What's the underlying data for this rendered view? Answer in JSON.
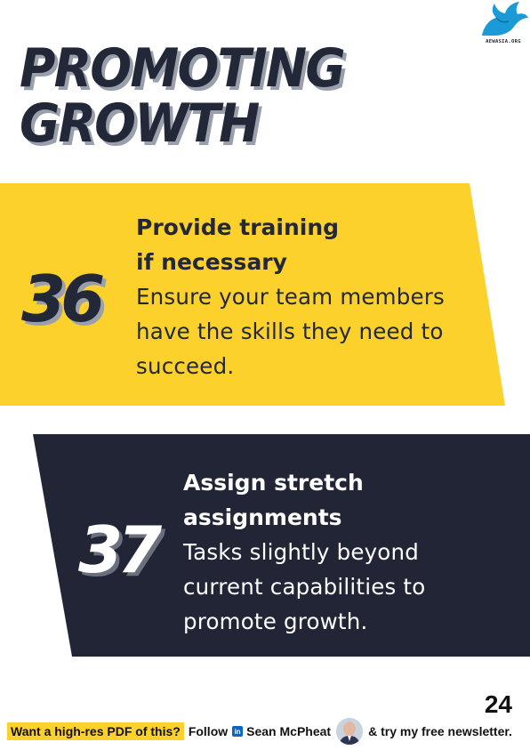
{
  "brand": {
    "logo_text": "AEWASIA.ORG"
  },
  "title": {
    "line1": "PROMOTING",
    "line2": "GROWTH"
  },
  "tips": [
    {
      "number": "36",
      "title_line1": "Provide training",
      "title_line2": "if necessary",
      "body": "Ensure your team members have the skills they need to succeed."
    },
    {
      "number": "37",
      "title_line1": "Assign stretch",
      "title_line2": "assignments",
      "body": "Tasks slightly beyond current capabilities to promote growth."
    }
  ],
  "page_number": "24",
  "footer": {
    "cta": "Want a high-res PDF of this?",
    "follow": "Follow",
    "linkedin_glyph": "in",
    "author": "Sean McPheat",
    "newsletter": "& try my free newsletter."
  },
  "colors": {
    "yellow": "#fdd12b",
    "navy": "#212535",
    "linkedin": "#0a66c2"
  },
  "icons": [
    "eagle-logo-icon",
    "linkedin-icon",
    "author-avatar"
  ]
}
